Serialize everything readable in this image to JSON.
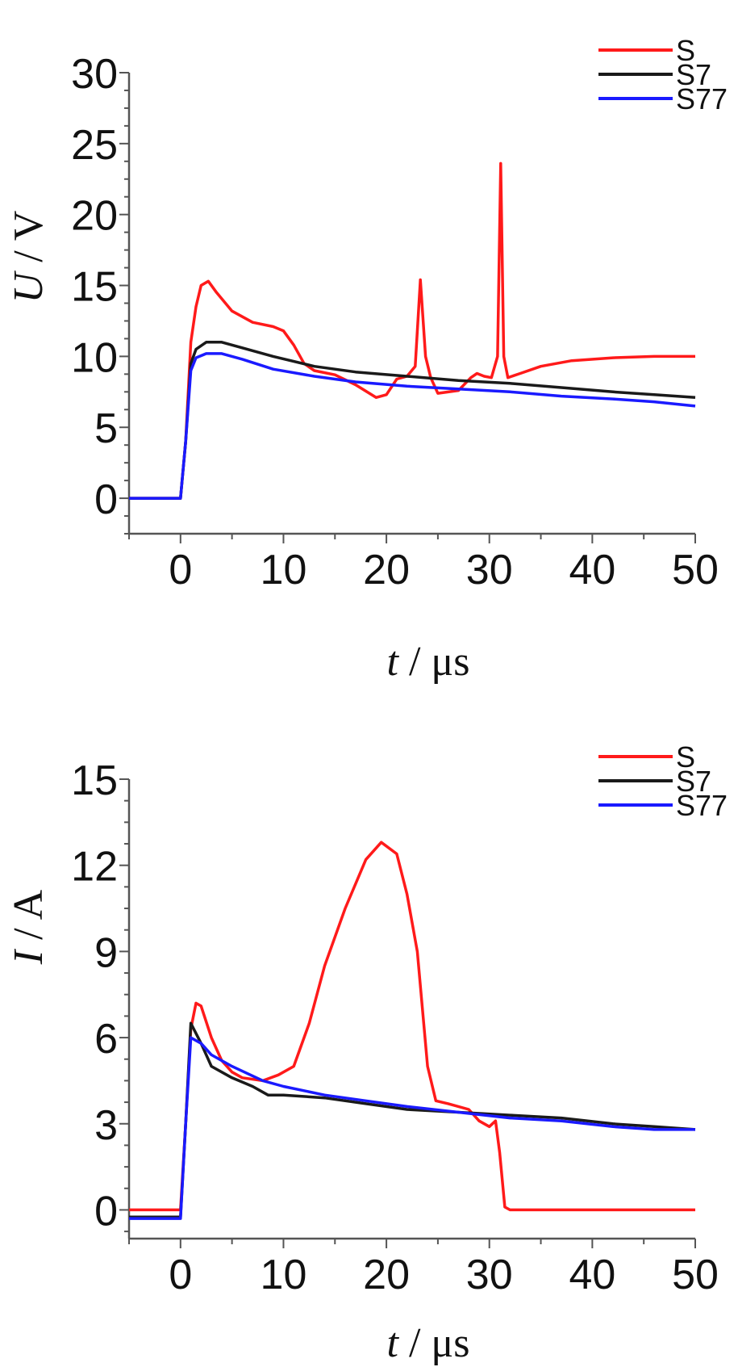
{
  "chart_data": [
    {
      "type": "line",
      "xlabel_italic": "t",
      "xlabel_rest": " / μs",
      "ylabel_italic": "U",
      "ylabel_rest": " / V",
      "xlim": [
        -5,
        50
      ],
      "ylim": [
        -2.5,
        30
      ],
      "xticks": [
        0,
        10,
        20,
        30,
        40,
        50
      ],
      "yticks": [
        0,
        5,
        10,
        15,
        20,
        25,
        30
      ],
      "xtick_labels": [
        "0",
        "10",
        "20",
        "30",
        "40",
        "50"
      ],
      "ytick_labels": [
        "0",
        "5",
        "10",
        "15",
        "20",
        "25",
        "30"
      ],
      "grid": false,
      "legend_position": "top-right",
      "series": [
        {
          "name": "S",
          "color": "#ff1a1a",
          "points": [
            [
              -5,
              0
            ],
            [
              0,
              0
            ],
            [
              0.5,
              4
            ],
            [
              1,
              11
            ],
            [
              1.5,
              13.5
            ],
            [
              2,
              15
            ],
            [
              2.7,
              15.3
            ],
            [
              3.5,
              14.5
            ],
            [
              5,
              13.2
            ],
            [
              7,
              12.4
            ],
            [
              9,
              12.1
            ],
            [
              10,
              11.8
            ],
            [
              11,
              10.8
            ],
            [
              12,
              9.5
            ],
            [
              13,
              9
            ],
            [
              15,
              8.7
            ],
            [
              17,
              8
            ],
            [
              19,
              7.1
            ],
            [
              20,
              7.3
            ],
            [
              21,
              8.4
            ],
            [
              22,
              8.6
            ],
            [
              22.8,
              9.3
            ],
            [
              23.3,
              15.4
            ],
            [
              23.8,
              10
            ],
            [
              24.3,
              8.5
            ],
            [
              25,
              7.4
            ],
            [
              27,
              7.6
            ],
            [
              28.2,
              8.5
            ],
            [
              28.8,
              8.8
            ],
            [
              29.5,
              8.6
            ],
            [
              30.2,
              8.5
            ],
            [
              30.8,
              10
            ],
            [
              31.1,
              23.6
            ],
            [
              31.4,
              10
            ],
            [
              31.8,
              8.5
            ],
            [
              33,
              8.8
            ],
            [
              35,
              9.3
            ],
            [
              38,
              9.7
            ],
            [
              42,
              9.9
            ],
            [
              46,
              10
            ],
            [
              50,
              10
            ]
          ]
        },
        {
          "name": "S7",
          "color": "#1a1a1a",
          "points": [
            [
              -5,
              0
            ],
            [
              0,
              0
            ],
            [
              0.5,
              4
            ],
            [
              1,
              9.5
            ],
            [
              1.5,
              10.5
            ],
            [
              2.5,
              11
            ],
            [
              4,
              11
            ],
            [
              6,
              10.6
            ],
            [
              9,
              10
            ],
            [
              13,
              9.3
            ],
            [
              17,
              8.9
            ],
            [
              22,
              8.6
            ],
            [
              27,
              8.3
            ],
            [
              32,
              8.1
            ],
            [
              37,
              7.8
            ],
            [
              42,
              7.5
            ],
            [
              46,
              7.3
            ],
            [
              50,
              7.1
            ]
          ]
        },
        {
          "name": "S77",
          "color": "#1a1aff",
          "points": [
            [
              -5,
              0
            ],
            [
              0,
              0
            ],
            [
              0.5,
              4
            ],
            [
              1,
              9
            ],
            [
              1.5,
              9.9
            ],
            [
              2.5,
              10.2
            ],
            [
              4,
              10.2
            ],
            [
              6,
              9.8
            ],
            [
              9,
              9.1
            ],
            [
              13,
              8.6
            ],
            [
              17,
              8.2
            ],
            [
              22,
              7.9
            ],
            [
              27,
              7.7
            ],
            [
              32,
              7.5
            ],
            [
              37,
              7.2
            ],
            [
              42,
              7
            ],
            [
              46,
              6.8
            ],
            [
              50,
              6.5
            ]
          ]
        }
      ]
    },
    {
      "type": "line",
      "xlabel_italic": "t",
      "xlabel_rest": " / μs",
      "ylabel_italic": "I",
      "ylabel_rest": " / A",
      "xlim": [
        -5,
        50
      ],
      "ylim": [
        -1,
        15
      ],
      "xticks": [
        0,
        10,
        20,
        30,
        40,
        50
      ],
      "yticks": [
        0,
        3,
        6,
        9,
        12,
        15
      ],
      "xtick_labels": [
        "0",
        "10",
        "20",
        "30",
        "40",
        "50"
      ],
      "ytick_labels": [
        "0",
        "3",
        "6",
        "9",
        "12",
        "15"
      ],
      "grid": false,
      "legend_position": "top-right",
      "series": [
        {
          "name": "S",
          "color": "#ff1a1a",
          "points": [
            [
              -5,
              0
            ],
            [
              0,
              0
            ],
            [
              0.5,
              3
            ],
            [
              1,
              6.3
            ],
            [
              1.5,
              7.2
            ],
            [
              2,
              7.1
            ],
            [
              3,
              6
            ],
            [
              4,
              5.2
            ],
            [
              5,
              4.8
            ],
            [
              6,
              4.6
            ],
            [
              8,
              4.5
            ],
            [
              9.5,
              4.7
            ],
            [
              11,
              5
            ],
            [
              12.5,
              6.5
            ],
            [
              14,
              8.5
            ],
            [
              16,
              10.5
            ],
            [
              18,
              12.2
            ],
            [
              19.5,
              12.8
            ],
            [
              21,
              12.4
            ],
            [
              22,
              11
            ],
            [
              23,
              9
            ],
            [
              24,
              5
            ],
            [
              24.8,
              3.8
            ],
            [
              26,
              3.7
            ],
            [
              28,
              3.5
            ],
            [
              29,
              3.1
            ],
            [
              30,
              2.9
            ],
            [
              30.6,
              3.1
            ],
            [
              31,
              2
            ],
            [
              31.5,
              0.1
            ],
            [
              32,
              0
            ],
            [
              50,
              0
            ]
          ]
        },
        {
          "name": "S7",
          "color": "#1a1a1a",
          "points": [
            [
              -5,
              -0.25
            ],
            [
              0,
              -0.25
            ],
            [
              0.5,
              3
            ],
            [
              1,
              6.5
            ],
            [
              2,
              5.8
            ],
            [
              3,
              5
            ],
            [
              5,
              4.6
            ],
            [
              7,
              4.3
            ],
            [
              8.5,
              4
            ],
            [
              10,
              4
            ],
            [
              14,
              3.9
            ],
            [
              18,
              3.7
            ],
            [
              22,
              3.5
            ],
            [
              27,
              3.4
            ],
            [
              32,
              3.3
            ],
            [
              37,
              3.2
            ],
            [
              42,
              3
            ],
            [
              46,
              2.9
            ],
            [
              50,
              2.8
            ]
          ]
        },
        {
          "name": "S77",
          "color": "#1a1aff",
          "points": [
            [
              -5,
              -0.3
            ],
            [
              0,
              -0.3
            ],
            [
              0.5,
              3
            ],
            [
              1,
              6
            ],
            [
              2,
              5.8
            ],
            [
              3,
              5.4
            ],
            [
              5,
              5
            ],
            [
              8,
              4.5
            ],
            [
              10,
              4.3
            ],
            [
              14,
              4
            ],
            [
              18,
              3.8
            ],
            [
              22,
              3.6
            ],
            [
              27,
              3.4
            ],
            [
              32,
              3.2
            ],
            [
              37,
              3.1
            ],
            [
              42,
              2.9
            ],
            [
              46,
              2.8
            ],
            [
              50,
              2.8
            ]
          ]
        }
      ]
    }
  ]
}
